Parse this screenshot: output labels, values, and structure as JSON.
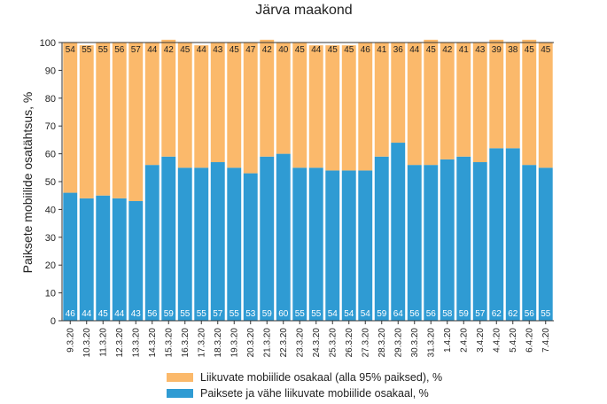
{
  "chart_data": {
    "type": "bar",
    "stacked": true,
    "title": "Järva maakond",
    "ylabel": "Paiksete mobiilide osatähtsus, %",
    "xlabel": "",
    "ylim": [
      0,
      100
    ],
    "yticks": [
      0,
      10,
      20,
      30,
      40,
      50,
      60,
      70,
      80,
      90,
      100
    ],
    "grid": false,
    "legend_position": "bottom",
    "categories": [
      "9.3.20",
      "10.3.20",
      "11.3.20",
      "12.3.20",
      "13.3.20",
      "14.3.20",
      "15.3.20",
      "16.3.20",
      "17.3.20",
      "18.3.20",
      "19.3.20",
      "20.3.20",
      "21.3.20",
      "22.3.20",
      "23.3.20",
      "24.3.20",
      "25.3.20",
      "26.3.20",
      "27.3.20",
      "28.3.20",
      "29.3.20",
      "30.3.20",
      "31.3.20",
      "1.4.20",
      "2.4.20",
      "3.4.20",
      "4.4.20",
      "5.4.20",
      "6.4.20",
      "7.4.20"
    ],
    "series": [
      {
        "name": "Paiksete ja vähe liikuvate mobiilide osakaal, %",
        "color": "#2f9bd3",
        "values": [
          46,
          44,
          45,
          44,
          43,
          56,
          59,
          55,
          55,
          57,
          55,
          53,
          59,
          60,
          55,
          55,
          54,
          54,
          54,
          59,
          64,
          56,
          56,
          58,
          59,
          57,
          62,
          62,
          56,
          55
        ]
      },
      {
        "name": "Liikuvate mobiilide osakaal (alla 95% paiksed), %",
        "color": "#fbb96b",
        "values": [
          54,
          55,
          55,
          56,
          57,
          44,
          42,
          45,
          44,
          43,
          45,
          47,
          42,
          40,
          45,
          44,
          45,
          45,
          46,
          41,
          36,
          44,
          45,
          42,
          41,
          43,
          39,
          38,
          45,
          45
        ]
      }
    ]
  }
}
